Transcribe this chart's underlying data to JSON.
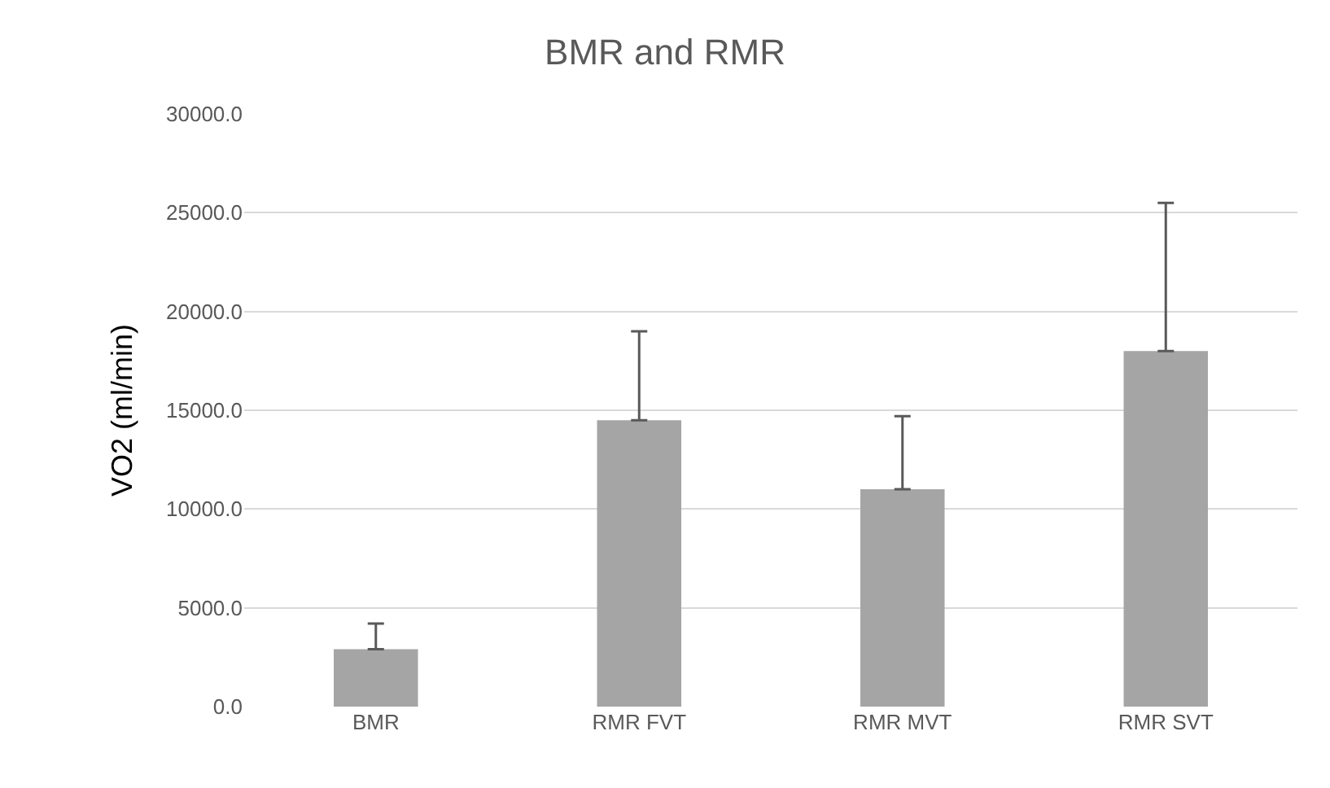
{
  "chart_data": {
    "type": "bar",
    "title": "BMR and RMR",
    "ylabel": "VO2 (ml/min)",
    "categories": [
      "BMR",
      "RMR FVT",
      "RMR MVT",
      "RMR SVT"
    ],
    "values": [
      2900,
      14500,
      11000,
      18000
    ],
    "errors": [
      [
        2900,
        4200
      ],
      [
        14500,
        19000
      ],
      [
        11000,
        14700
      ],
      [
        18000,
        25500
      ]
    ],
    "color": "#a5a5a5",
    "ylim": [
      0,
      30000
    ],
    "yticks": [
      {
        "value": 0,
        "label": "0.0"
      },
      {
        "value": 5000,
        "label": "5000.0"
      },
      {
        "value": 10000,
        "label": "10000.0"
      },
      {
        "value": 15000,
        "label": "15000.0"
      },
      {
        "value": 20000,
        "label": "20000.0"
      },
      {
        "value": 25000,
        "label": "25000.0"
      },
      {
        "value": 30000,
        "label": "30000.0"
      }
    ],
    "grid": "y"
  }
}
